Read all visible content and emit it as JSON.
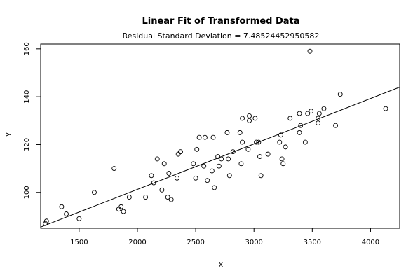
{
  "chart_data": {
    "type": "scatter",
    "title": "Linear Fit of Transformed Data",
    "subtitle": "Residual Standard Deviation =  7.48524452950582",
    "xlabel": "x",
    "ylabel": "y",
    "xlim": [
      1170,
      4250
    ],
    "ylim": [
      85,
      162
    ],
    "xticks": [
      1500,
      2000,
      2500,
      3000,
      3500,
      4000
    ],
    "yticks": [
      100,
      120,
      140,
      160
    ],
    "grid": false,
    "fit_line": {
      "x": [
        1170,
        4250
      ],
      "y": [
        85.5,
        144
      ]
    },
    "points": [
      [
        1210,
        87
      ],
      [
        1220,
        88
      ],
      [
        1350,
        94
      ],
      [
        1390,
        91
      ],
      [
        1500,
        89
      ],
      [
        1630,
        100
      ],
      [
        1800,
        110
      ],
      [
        1840,
        93
      ],
      [
        1860,
        94
      ],
      [
        1880,
        92
      ],
      [
        1930,
        98
      ],
      [
        2070,
        98
      ],
      [
        2120,
        107
      ],
      [
        2140,
        104
      ],
      [
        2170,
        114
      ],
      [
        2210,
        101
      ],
      [
        2230,
        112
      ],
      [
        2260,
        98
      ],
      [
        2270,
        108
      ],
      [
        2290,
        97
      ],
      [
        2340,
        106
      ],
      [
        2350,
        116
      ],
      [
        2370,
        117
      ],
      [
        2480,
        112
      ],
      [
        2500,
        106
      ],
      [
        2510,
        118
      ],
      [
        2530,
        123
      ],
      [
        2570,
        111
      ],
      [
        2580,
        123
      ],
      [
        2600,
        105
      ],
      [
        2640,
        109
      ],
      [
        2650,
        123
      ],
      [
        2660,
        102
      ],
      [
        2690,
        115
      ],
      [
        2700,
        111
      ],
      [
        2720,
        114
      ],
      [
        2770,
        125
      ],
      [
        2780,
        114
      ],
      [
        2790,
        107
      ],
      [
        2820,
        117
      ],
      [
        2880,
        125
      ],
      [
        2890,
        112
      ],
      [
        2900,
        121
      ],
      [
        2900,
        131
      ],
      [
        2950,
        118
      ],
      [
        2960,
        130
      ],
      [
        2960,
        132
      ],
      [
        3010,
        131
      ],
      [
        3020,
        121
      ],
      [
        3040,
        121
      ],
      [
        3050,
        115
      ],
      [
        3060,
        107
      ],
      [
        3120,
        116
      ],
      [
        3220,
        121
      ],
      [
        3230,
        124
      ],
      [
        3240,
        114
      ],
      [
        3250,
        112
      ],
      [
        3270,
        119
      ],
      [
        3310,
        131
      ],
      [
        3390,
        125
      ],
      [
        3390,
        133
      ],
      [
        3400,
        128
      ],
      [
        3440,
        121
      ],
      [
        3460,
        133
      ],
      [
        3480,
        159
      ],
      [
        3490,
        134
      ],
      [
        3550,
        131
      ],
      [
        3550,
        129
      ],
      [
        3560,
        133
      ],
      [
        3600,
        135
      ],
      [
        3700,
        128
      ],
      [
        3740,
        141
      ],
      [
        4130,
        135
      ]
    ]
  }
}
